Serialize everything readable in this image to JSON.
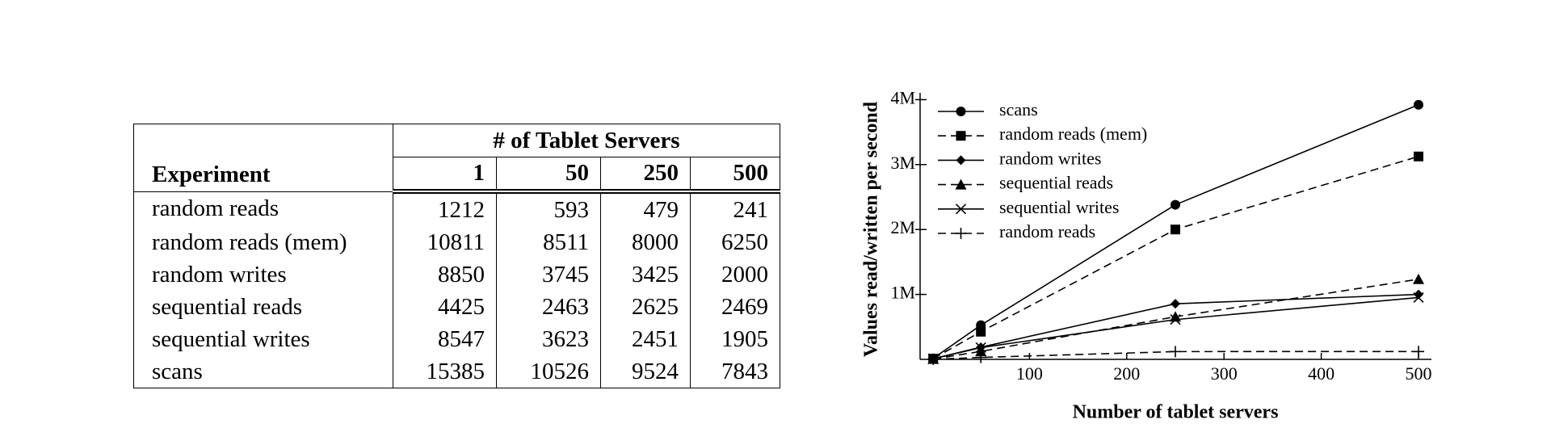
{
  "table": {
    "header": {
      "experiment": "Experiment",
      "group": "# of Tablet Servers",
      "columns": [
        1,
        50,
        250,
        500
      ]
    },
    "rows": [
      {
        "label": "random reads",
        "values": [
          1212,
          593,
          479,
          241
        ]
      },
      {
        "label": "random reads (mem)",
        "values": [
          10811,
          8511,
          8000,
          6250
        ]
      },
      {
        "label": "random writes",
        "values": [
          8850,
          3745,
          3425,
          2000
        ]
      },
      {
        "label": "sequential reads",
        "values": [
          4425,
          2463,
          2625,
          2469
        ]
      },
      {
        "label": "sequential writes",
        "values": [
          8547,
          3623,
          2451,
          1905
        ]
      },
      {
        "label": "scans",
        "values": [
          15385,
          10526,
          9524,
          7843
        ]
      }
    ]
  },
  "chart_data": {
    "type": "line",
    "x_label": "Number of tablet servers",
    "y_label": "Values read/written per second",
    "x": [
      1,
      50,
      250,
      500
    ],
    "xlim": [
      0,
      500
    ],
    "xticks": [
      100,
      200,
      300,
      400,
      500
    ],
    "ylim": [
      0,
      4000000
    ],
    "yticks": [
      {
        "value": 1000000,
        "label": "1M"
      },
      {
        "value": 2000000,
        "label": "2M"
      },
      {
        "value": 3000000,
        "label": "3M"
      },
      {
        "value": 4000000,
        "label": "4M"
      }
    ],
    "legend": "upper left",
    "series": [
      {
        "name": "scans",
        "color": "#000000",
        "dashed": false,
        "marker": "circle",
        "values": [
          15385,
          526300,
          2381000,
          3921500
        ]
      },
      {
        "name": "random reads (mem)",
        "color": "#000000",
        "dashed": true,
        "marker": "square",
        "values": [
          10811,
          425550,
          2000000,
          3125000
        ]
      },
      {
        "name": "random writes",
        "color": "#000000",
        "dashed": false,
        "marker": "diamond",
        "values": [
          8850,
          187250,
          856250,
          1000000
        ]
      },
      {
        "name": "sequential reads",
        "color": "#000000",
        "dashed": true,
        "marker": "triangle",
        "values": [
          4425,
          123150,
          656250,
          1234500
        ]
      },
      {
        "name": "sequential writes",
        "color": "#000000",
        "dashed": false,
        "marker": "x",
        "values": [
          8547,
          181150,
          612750,
          952500
        ]
      },
      {
        "name": "random reads",
        "color": "#000000",
        "dashed": true,
        "marker": "plus",
        "values": [
          1212,
          29650,
          119750,
          120500
        ]
      }
    ]
  }
}
